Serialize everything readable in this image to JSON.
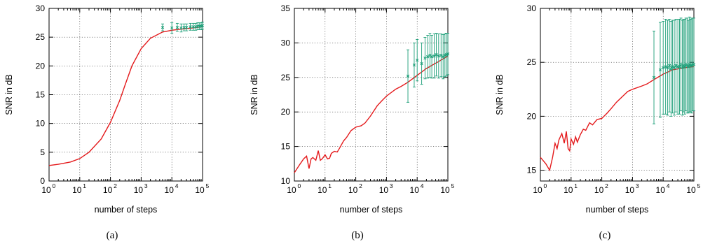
{
  "colors": {
    "curve": "#e41a1c",
    "errorbars": "#1b9e77",
    "axes": "#000000"
  },
  "chart_data": [
    {
      "type": "line",
      "caption": "(a)",
      "xlabel": "number of steps",
      "ylabel": "SNR in dB",
      "xscale": "log10",
      "xlim": [
        1,
        100000
      ],
      "ylim": [
        0,
        30
      ],
      "yticks": [
        0,
        5,
        10,
        15,
        20,
        25,
        30
      ],
      "grid": true,
      "series": [
        {
          "style": "line",
          "x": [
            1,
            2,
            5,
            10,
            20,
            50,
            100,
            200,
            300,
            500,
            1000,
            2000,
            5000,
            10000,
            20000,
            50000,
            100000
          ],
          "y": [
            2.7,
            2.9,
            3.3,
            3.9,
            5.0,
            7.3,
            10.2,
            14.0,
            16.7,
            20.0,
            23.0,
            24.8,
            25.9,
            26.2,
            26.4,
            26.6,
            26.8
          ]
        },
        {
          "style": "errorbar",
          "x": [
            5000,
            10000,
            15000,
            20000,
            25000,
            30000,
            40000,
            50000,
            60000,
            70000,
            80000,
            90000,
            100000
          ],
          "y": [
            26.7,
            26.6,
            26.7,
            26.6,
            26.7,
            26.7,
            26.8,
            26.8,
            26.8,
            26.9,
            26.9,
            26.9,
            27.0
          ],
          "yerr": [
            0.6,
            0.9,
            0.7,
            0.7,
            0.6,
            0.6,
            0.6,
            0.6,
            0.6,
            0.6,
            0.6,
            0.6,
            0.6
          ]
        }
      ]
    },
    {
      "type": "line",
      "caption": "(b)",
      "xlabel": "number of steps",
      "ylabel": "SNR in dB",
      "xscale": "log10",
      "xlim": [
        1,
        100000
      ],
      "ylim": [
        10,
        35
      ],
      "yticks": [
        10,
        15,
        20,
        25,
        30,
        35
      ],
      "grid": true,
      "series": [
        {
          "style": "line",
          "x": [
            1,
            1.5,
            2,
            2.5,
            3,
            3.5,
            4,
            5,
            6,
            7,
            8,
            9,
            10,
            12,
            14,
            16,
            20,
            25,
            30,
            40,
            50,
            70,
            100,
            150,
            200,
            300,
            500,
            700,
            1000,
            2000,
            3000,
            5000,
            10000,
            20000,
            50000,
            100000
          ],
          "y": [
            11.2,
            12.4,
            13.2,
            13.6,
            11.8,
            13.2,
            13.4,
            13.0,
            14.4,
            13.0,
            13.2,
            13.5,
            13.8,
            13.2,
            13.3,
            14.0,
            14.3,
            14.2,
            14.8,
            15.8,
            16.3,
            17.3,
            17.8,
            18.0,
            18.4,
            19.4,
            20.9,
            21.6,
            22.3,
            23.3,
            23.7,
            24.3,
            25.3,
            26.3,
            27.3,
            28.1
          ]
        },
        {
          "style": "errorbar",
          "x": [
            5000,
            8000,
            10000,
            14000,
            18000,
            22000,
            26000,
            30000,
            36000,
            42000,
            50000,
            60000,
            70000,
            80000,
            90000,
            100000
          ],
          "y": [
            25.2,
            26.8,
            27.5,
            27.0,
            27.8,
            28.0,
            28.2,
            28.0,
            28.1,
            28.3,
            28.1,
            28.2,
            28.0,
            28.2,
            28.3,
            28.4
          ],
          "yerr": [
            3.8,
            3.2,
            3.0,
            3.0,
            3.0,
            3.1,
            3.2,
            3.1,
            3.2,
            3.1,
            3.2,
            3.1,
            3.2,
            3.1,
            3.1,
            3.0
          ]
        }
      ]
    },
    {
      "type": "line",
      "caption": "(c)",
      "xlabel": "number of steps",
      "ylabel": "SNR in dB",
      "xscale": "log10",
      "xlim": [
        1,
        100000
      ],
      "ylim": [
        14,
        30
      ],
      "yticks": [
        15,
        20,
        25,
        30
      ],
      "grid": true,
      "series": [
        {
          "style": "line",
          "x": [
            1,
            1.5,
            2,
            2.5,
            3,
            3.5,
            4,
            5,
            6,
            7,
            8,
            9,
            10,
            12,
            14,
            16,
            20,
            25,
            30,
            40,
            50,
            70,
            100,
            150,
            200,
            300,
            500,
            700,
            1000,
            2000,
            3000,
            5000,
            10000,
            20000,
            50000,
            100000
          ],
          "y": [
            16.2,
            15.6,
            15.0,
            16.2,
            17.5,
            17.0,
            17.8,
            18.4,
            17.5,
            18.6,
            17.0,
            16.8,
            17.9,
            17.4,
            18.1,
            17.6,
            18.3,
            18.8,
            18.7,
            19.4,
            19.2,
            19.7,
            19.8,
            20.3,
            20.7,
            21.3,
            21.9,
            22.3,
            22.5,
            22.8,
            23.0,
            23.4,
            23.9,
            24.3,
            24.5,
            24.6
          ]
        },
        {
          "style": "errorbar",
          "x": [
            5000,
            8000,
            10000,
            12000,
            14000,
            16000,
            18000,
            20000,
            23000,
            26000,
            30000,
            34000,
            38000,
            42000,
            46000,
            50000,
            55000,
            60000,
            66000,
            72000,
            78000,
            85000,
            92000,
            100000
          ],
          "y": [
            23.6,
            24.3,
            24.5,
            24.6,
            24.5,
            24.7,
            24.4,
            24.6,
            24.5,
            24.7,
            24.6,
            24.6,
            24.8,
            24.5,
            24.7,
            24.6,
            24.8,
            24.7,
            24.6,
            24.8,
            24.7,
            24.7,
            24.8,
            24.8
          ],
          "yerr": [
            4.3,
            4.4,
            4.3,
            4.4,
            4.4,
            4.3,
            4.4,
            4.3,
            4.4,
            4.3,
            4.4,
            4.4,
            4.3,
            4.4,
            4.3,
            4.4,
            4.3,
            4.4,
            4.3,
            4.4,
            4.3,
            4.4,
            4.3,
            4.3
          ]
        }
      ]
    }
  ]
}
